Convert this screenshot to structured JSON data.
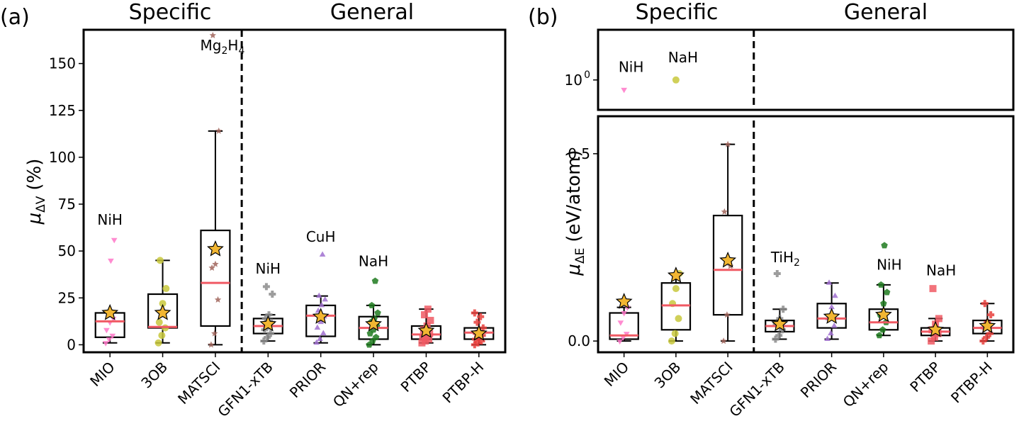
{
  "chart_data": [
    {
      "type": "box",
      "panel_label": "(a)",
      "group_labels": [
        "Specific",
        "General"
      ],
      "ylabel_main": "μ",
      "ylabel_sub": "ΔV",
      "ylabel_unit": "(%)",
      "ylim": [
        -4,
        168
      ],
      "yticks": [
        0,
        25,
        50,
        75,
        100,
        125,
        150
      ],
      "ytick_labels": [
        "0",
        "25",
        "50",
        "75",
        "100",
        "125",
        "150"
      ],
      "categories": [
        "MIO",
        "3OB",
        "MATSCI",
        "GFN1-xTB",
        "PRIOR",
        "QN+rep",
        "PTBP",
        "PTBP-H"
      ],
      "split_after_index": 2,
      "series": [
        {
          "name": "MIO",
          "color": "#ff77c8",
          "marker": "tri_down",
          "box": {
            "q1": 4,
            "median": 12.5,
            "q3": 17,
            "whislo": 1,
            "whishi": 17
          },
          "mean": 17,
          "points": [
            1,
            3,
            5,
            8,
            12,
            14,
            17,
            45,
            56
          ],
          "outliers": [
            45,
            56
          ],
          "annotation": {
            "text": "NiH",
            "y": 64
          }
        },
        {
          "name": "3OB",
          "color": "#c8c83c",
          "marker": "circle",
          "box": {
            "q1": 9,
            "median": 9.5,
            "q3": 27,
            "whislo": 1,
            "whishi": 45
          },
          "mean": 17,
          "points": [
            1,
            5,
            9,
            12,
            22,
            30,
            45
          ],
          "outliers": []
        },
        {
          "name": "MATSCI",
          "color": "#a0645a",
          "marker": "star",
          "box": {
            "q1": 10,
            "median": 33,
            "q3": 61,
            "whislo": 0,
            "whishi": 114
          },
          "mean": 51,
          "points": [
            0,
            6,
            24,
            41,
            43,
            114,
            165
          ],
          "outliers": [
            165
          ],
          "annotation": {
            "text": "Mg",
            "sub": "2",
            "text2": "H",
            "sub2": "4",
            "y": 157
          }
        },
        {
          "name": "GFN1-xTB",
          "color": "#8c8c8c",
          "marker": "plus",
          "box": {
            "q1": 6,
            "median": 10,
            "q3": 14,
            "whislo": 2,
            "whishi": 16
          },
          "mean": 11,
          "points": [
            2,
            4,
            6,
            8,
            10,
            12,
            14,
            16,
            27,
            31
          ],
          "outliers": [
            27,
            31
          ],
          "annotation": {
            "text": "NiH",
            "y": 38
          }
        },
        {
          "name": "PRIOR",
          "color": "#a070d0",
          "marker": "triangle",
          "box": {
            "q1": 4.5,
            "median": 15.5,
            "q3": 21,
            "whislo": 1,
            "whishi": 26
          },
          "mean": 15,
          "points": [
            1,
            3,
            6,
            9,
            12,
            15,
            18,
            21,
            24,
            26,
            48
          ],
          "outliers": [
            48
          ],
          "annotation": {
            "text": "CuH",
            "y": 55
          }
        },
        {
          "name": "QN+rep",
          "color": "#1e7a1e",
          "marker": "pentagon",
          "box": {
            "q1": 3,
            "median": 9,
            "q3": 15,
            "whislo": 0,
            "whishi": 21
          },
          "mean": 11,
          "points": [
            0,
            2,
            4,
            6,
            8,
            10,
            12,
            14,
            17,
            21,
            34
          ],
          "outliers": [
            34
          ],
          "annotation": {
            "text": "NaH",
            "y": 42
          }
        },
        {
          "name": "PTBP",
          "color": "#f05a64",
          "marker": "square",
          "box": {
            "q1": 3,
            "median": 5.5,
            "q3": 10,
            "whislo": 1,
            "whishi": 19
          },
          "mean": 7.5,
          "points": [
            1,
            2,
            3,
            4,
            5,
            6,
            8,
            10,
            13,
            16,
            19
          ],
          "outliers": []
        },
        {
          "name": "PTBP-H",
          "color": "#e8403c",
          "marker": "plus",
          "box": {
            "q1": 3,
            "median": 6.5,
            "q3": 9,
            "whislo": 0,
            "whishi": 17
          },
          "mean": 6,
          "points": [
            0,
            1,
            2,
            3,
            4,
            5,
            6,
            7,
            9,
            12,
            15,
            17
          ],
          "outliers": []
        }
      ]
    },
    {
      "type": "box",
      "panel_label": "(b)",
      "group_labels": [
        "Specific",
        "General"
      ],
      "ylabel_main": "μ",
      "ylabel_sub": "ΔE",
      "ylabel_unit": "(eV/atom)",
      "broken_axis": true,
      "top_ylim_log": [
        0.5,
        3.2
      ],
      "top_yticks": [
        1
      ],
      "top_ytick_label_base": "10",
      "top_ytick_label_exp": "0",
      "ylim": [
        -0.03,
        0.6
      ],
      "yticks": [
        0.0,
        0.5
      ],
      "ytick_labels": [
        "0.0",
        "0.5"
      ],
      "categories": [
        "MIO",
        "3OB",
        "MATSCI",
        "GFN1-xTB",
        "PRIOR",
        "QN+rep",
        "PTBP",
        "PTBP-H"
      ],
      "split_after_index": 2,
      "series": [
        {
          "name": "MIO",
          "color": "#ff77c8",
          "marker": "tri_down",
          "box": {
            "q1": 0.005,
            "median": 0.015,
            "q3": 0.075,
            "whislo": 0.0,
            "whishi": 0.09
          },
          "mean": 0.105,
          "points": [
            0.0,
            0.01,
            0.02,
            0.05,
            0.075,
            0.09
          ],
          "outliers": [],
          "top_outliers": [
            0.8
          ],
          "annotation": {
            "text": "NiH",
            "y_top": 1.2
          }
        },
        {
          "name": "3OB",
          "color": "#c8c83c",
          "marker": "circle",
          "box": {
            "q1": 0.03,
            "median": 0.095,
            "q3": 0.155,
            "whislo": 0.0,
            "whishi": 0.18
          },
          "mean": 0.175,
          "points": [
            0.0,
            0.02,
            0.06,
            0.1,
            0.14,
            0.18
          ],
          "outliers": [],
          "top_outliers": [
            1.0
          ],
          "annotation": {
            "text": "NaH",
            "y_top": 1.5
          }
        },
        {
          "name": "MATSCI",
          "color": "#a0645a",
          "marker": "star",
          "box": {
            "q1": 0.07,
            "median": 0.19,
            "q3": 0.335,
            "whislo": 0.0,
            "whishi": 0.525
          },
          "mean": 0.215,
          "points": [
            0.0,
            0.07,
            0.2,
            0.345,
            0.525
          ],
          "outliers": []
        },
        {
          "name": "GFN1-xTB",
          "color": "#8c8c8c",
          "marker": "plus",
          "box": {
            "q1": 0.025,
            "median": 0.04,
            "q3": 0.055,
            "whislo": 0.005,
            "whishi": 0.085
          },
          "mean": 0.045,
          "points": [
            0.005,
            0.015,
            0.03,
            0.045,
            0.06,
            0.085,
            0.18
          ],
          "outliers": [
            0.18
          ],
          "annotation": {
            "text": "TiH",
            "sub": "2",
            "y": 0.21
          }
        },
        {
          "name": "PRIOR",
          "color": "#a070d0",
          "marker": "triangle",
          "box": {
            "q1": 0.035,
            "median": 0.06,
            "q3": 0.1,
            "whislo": 0.005,
            "whishi": 0.155
          },
          "mean": 0.065,
          "points": [
            0.005,
            0.02,
            0.04,
            0.06,
            0.09,
            0.12,
            0.155
          ],
          "outliers": []
        },
        {
          "name": "QN+rep",
          "color": "#1e7a1e",
          "marker": "pentagon",
          "box": {
            "q1": 0.03,
            "median": 0.05,
            "q3": 0.085,
            "whislo": 0.015,
            "whishi": 0.15
          },
          "mean": 0.07,
          "points": [
            0.015,
            0.03,
            0.05,
            0.07,
            0.1,
            0.13,
            0.15,
            0.255
          ],
          "outliers": [
            0.255
          ],
          "annotation": {
            "text": "NiH",
            "y": 0.19
          }
        },
        {
          "name": "PTBP",
          "color": "#f05a64",
          "marker": "square",
          "box": {
            "q1": 0.015,
            "median": 0.025,
            "q3": 0.035,
            "whislo": 0.0,
            "whishi": 0.06
          },
          "mean": 0.03,
          "points": [
            0.0,
            0.01,
            0.02,
            0.03,
            0.045,
            0.06,
            0.14
          ],
          "outliers": [
            0.14
          ],
          "annotation": {
            "text": "NaH",
            "y": 0.175
          }
        },
        {
          "name": "PTBP-H",
          "color": "#e8403c",
          "marker": "plus",
          "box": {
            "q1": 0.02,
            "median": 0.035,
            "q3": 0.055,
            "whislo": 0.0,
            "whishi": 0.1
          },
          "mean": 0.04,
          "points": [
            0.0,
            0.01,
            0.02,
            0.035,
            0.05,
            0.07,
            0.1
          ],
          "outliers": []
        }
      ]
    }
  ]
}
